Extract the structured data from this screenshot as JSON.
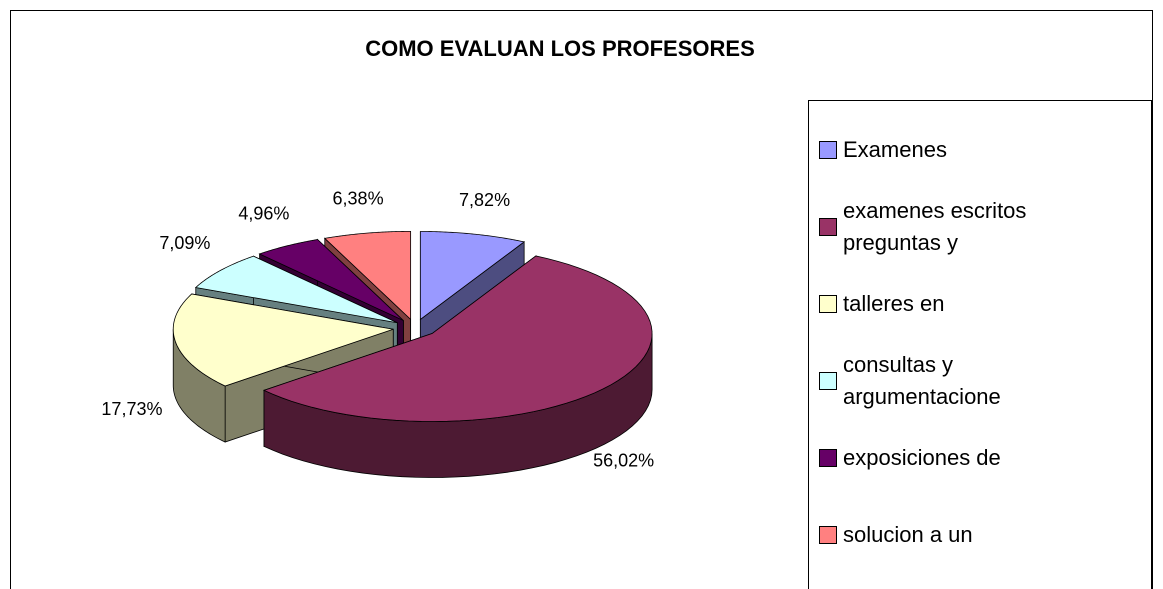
{
  "chart_data": {
    "type": "pie",
    "title": "COMO EVALUAN LOS PROFESORES",
    "categories": [
      "Examenes",
      "examenes escritos preguntas y",
      "talleres en",
      "consultas y argumentacione",
      "exposiciones de",
      "solucion a un"
    ],
    "values": [
      7.82,
      56.02,
      17.73,
      7.09,
      4.96,
      6.38
    ],
    "value_labels": [
      "7,82%",
      "56,02%",
      "17,73%",
      "7,09%",
      "4,96%",
      "6,38%"
    ],
    "colors": [
      "#9999ff",
      "#993366",
      "#ffffcc",
      "#ccffff",
      "#660066",
      "#ff8080"
    ],
    "legend": "right"
  }
}
